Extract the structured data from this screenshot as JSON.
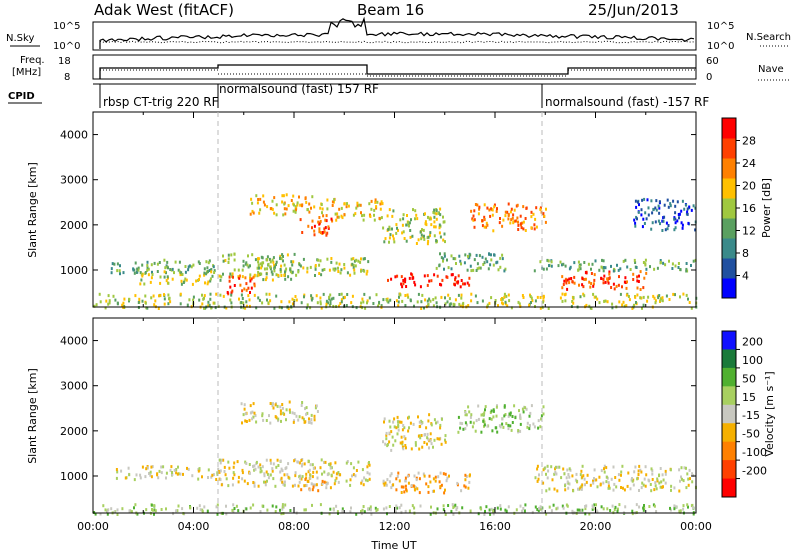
{
  "header": {
    "station": "Adak West (fitACF)",
    "beam": "Beam 16",
    "date": "25/Jun/2013"
  },
  "noise_panel": {
    "left_label": "N.Sky",
    "right_label": "N.Search",
    "tick_top": "10^5",
    "tick_bottom": "10^0"
  },
  "freq_panel": {
    "left_label_line1": "Freq.",
    "left_label_line2": "[MHz]",
    "right_label": "Nave",
    "left_ticks": [
      "18",
      "8"
    ],
    "right_ticks": [
      "60",
      "0"
    ]
  },
  "cpid_panel": {
    "label": "CPID",
    "segments": [
      {
        "text": "rbsp CT-trig 220 RF",
        "start_hour": 0.5
      },
      {
        "text": "normalsound (fast) 157 RF",
        "start_hour": 5.0
      },
      {
        "text": "normalsound (fast) -157 RF",
        "start_hour": 18.0
      }
    ]
  },
  "colors": {
    "power_scale": [
      "#0000ff",
      "#2050a0",
      "#3a8a8a",
      "#5aa060",
      "#a0c840",
      "#ffc000",
      "#ff8000",
      "#ff4000",
      "#ff0000"
    ],
    "velocity_scale": [
      "#1010ff",
      "#1a7a3a",
      "#50b030",
      "#a8d060",
      "#c8c8c0",
      "#f5b000",
      "#ff8000",
      "#ff4000",
      "#ff0000"
    ]
  },
  "chart_data": [
    {
      "type": "heatmap",
      "name": "power",
      "xlabel": "",
      "ylabel": "Slant Range [km]",
      "x_range_hours": [
        0,
        24
      ],
      "ylim": [
        180,
        4500
      ],
      "yticks": [
        1000,
        2000,
        3000,
        4000
      ],
      "colorbar": {
        "label": "Power [dB]",
        "ticks": [
          4,
          8,
          12,
          16,
          20,
          24,
          28
        ],
        "range": [
          0,
          32
        ]
      },
      "regions": [
        {
          "t": [
            0.7,
            5.0
          ],
          "r": [
            950,
            1250
          ],
          "level": 3
        },
        {
          "t": [
            1.5,
            4.8
          ],
          "r": [
            700,
            1000
          ],
          "level": 4
        },
        {
          "t": [
            5.0,
            8.0
          ],
          "r": [
            800,
            1400
          ],
          "level": 4
        },
        {
          "t": [
            5.3,
            6.4
          ],
          "r": [
            500,
            900
          ],
          "level": 7
        },
        {
          "t": [
            6.5,
            11.0
          ],
          "r": [
            900,
            1300
          ],
          "level": 4
        },
        {
          "t": [
            6.2,
            8.8
          ],
          "r": [
            2250,
            2700
          ],
          "level": 5
        },
        {
          "t": [
            8.2,
            9.5
          ],
          "r": [
            1800,
            2200
          ],
          "level": 7
        },
        {
          "t": [
            9.0,
            11.5
          ],
          "r": [
            2100,
            2600
          ],
          "level": 5
        },
        {
          "t": [
            11.7,
            15.0
          ],
          "r": [
            650,
            950
          ],
          "level": 8
        },
        {
          "t": [
            11.5,
            14.0
          ],
          "r": [
            1600,
            2400
          ],
          "level": 4
        },
        {
          "t": [
            13.5,
            16.5
          ],
          "r": [
            1000,
            1400
          ],
          "level": 3
        },
        {
          "t": [
            15.0,
            18.0
          ],
          "r": [
            1900,
            2500
          ],
          "level": 6
        },
        {
          "t": [
            18.5,
            22.0
          ],
          "r": [
            600,
            1000
          ],
          "level": 7
        },
        {
          "t": [
            17.5,
            24.0
          ],
          "r": [
            1000,
            1250
          ],
          "level": 3
        },
        {
          "t": [
            21.5,
            24.0
          ],
          "r": [
            1900,
            2600
          ],
          "level": 1
        },
        {
          "t": [
            0.0,
            24.0
          ],
          "r": [
            180,
            500
          ],
          "level": 4
        }
      ]
    },
    {
      "type": "heatmap",
      "name": "velocity",
      "xlabel": "Time UT",
      "ylabel": "Slant Range [km]",
      "x_range_hours": [
        0,
        24
      ],
      "xticks": [
        "00:00",
        "04:00",
        "08:00",
        "12:00",
        "16:00",
        "20:00",
        "00:00"
      ],
      "ylim": [
        180,
        4500
      ],
      "yticks": [
        1000,
        2000,
        3000,
        4000
      ],
      "colorbar": {
        "label": "Velocity [m s⁻¹]",
        "ticks": [
          200,
          100,
          50,
          15,
          -15,
          -50,
          -100,
          -200
        ]
      },
      "regions": [
        {
          "t": [
            0.7,
            5.0
          ],
          "r": [
            950,
            1250
          ],
          "level": 4
        },
        {
          "t": [
            5.0,
            11.0
          ],
          "r": [
            800,
            1400
          ],
          "level": 4
        },
        {
          "t": [
            8.2,
            9.6
          ],
          "r": [
            700,
            1000
          ],
          "level": 5
        },
        {
          "t": [
            5.8,
            9.0
          ],
          "r": [
            2200,
            2700
          ],
          "level": 4
        },
        {
          "t": [
            11.5,
            15.0
          ],
          "r": [
            650,
            1100
          ],
          "level": 5
        },
        {
          "t": [
            11.5,
            14.0
          ],
          "r": [
            1600,
            2400
          ],
          "level": 4
        },
        {
          "t": [
            14.5,
            18.0
          ],
          "r": [
            2000,
            2600
          ],
          "level": 3
        },
        {
          "t": [
            17.5,
            24.0
          ],
          "r": [
            700,
            1250
          ],
          "level": 4
        },
        {
          "t": [
            0.0,
            24.0
          ],
          "r": [
            180,
            400
          ],
          "level": 3
        }
      ]
    }
  ]
}
